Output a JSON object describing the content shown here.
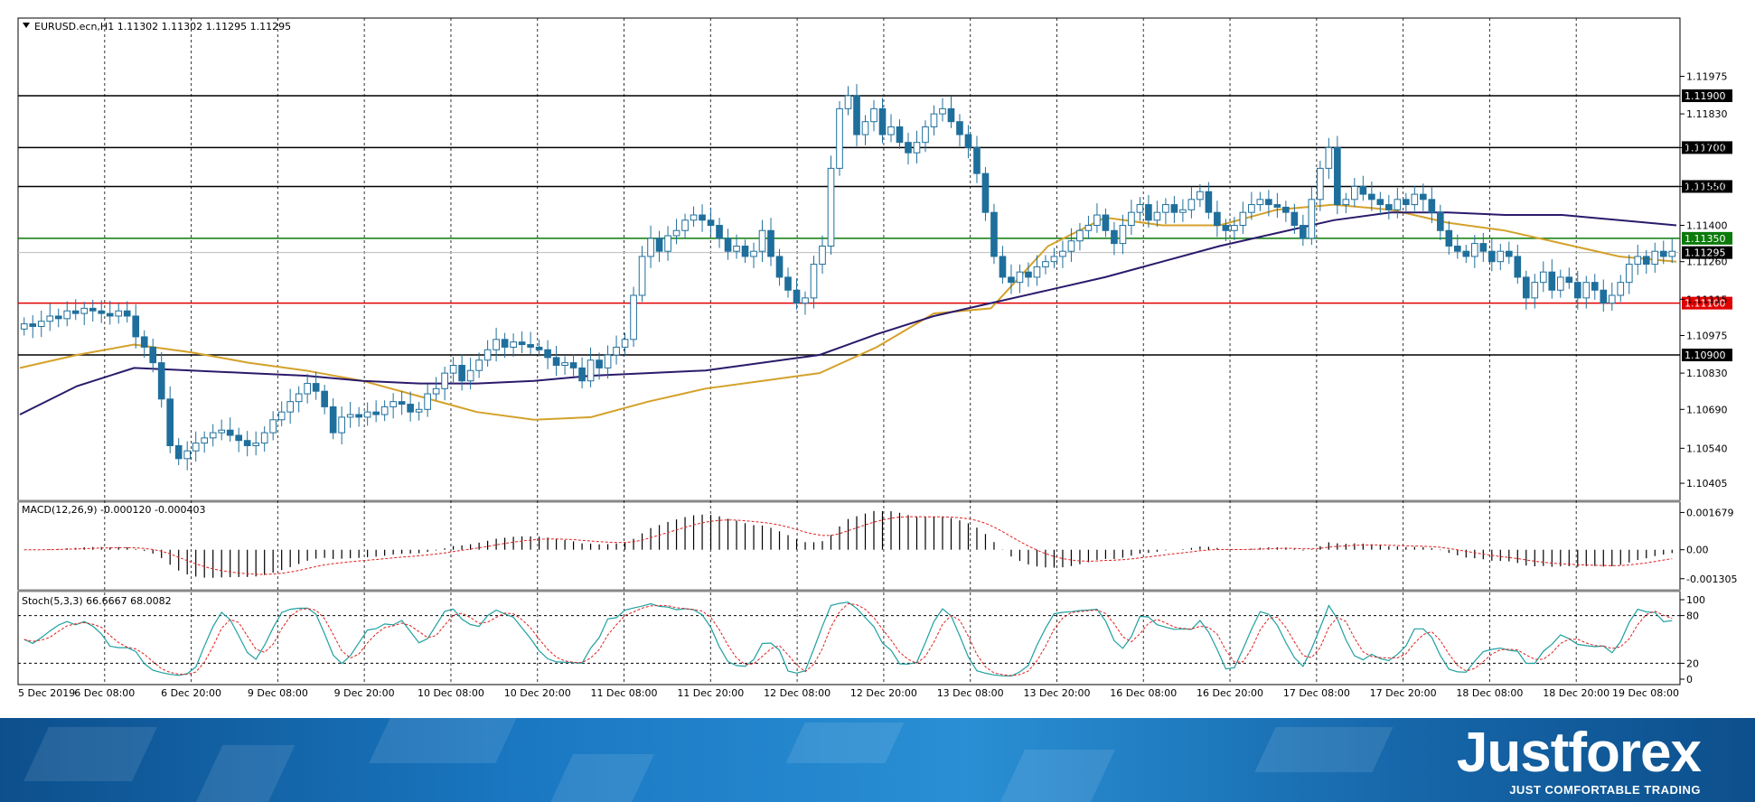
{
  "chart_data": {
    "type": "candlestick",
    "symbol_header": "EURUSD.ecn,H1  1.11302 1.11302 1.11295 1.11295",
    "y_ticks": [
      "1.11975",
      "1.11830",
      "1.11700",
      "1.11550",
      "1.11400",
      "1.11260",
      "1.11115",
      "1.10975",
      "1.10830",
      "1.10690",
      "1.10540",
      "1.10405"
    ],
    "ylim": [
      1.1036,
      1.1213
    ],
    "levels": [
      {
        "label": "1.11900",
        "value": 1.119,
        "color": "#000000",
        "tag_bg": "#000000"
      },
      {
        "label": "1.11700",
        "value": 1.117,
        "color": "#000000",
        "tag_bg": "#000000"
      },
      {
        "label": "1.11550",
        "value": 1.1155,
        "color": "#000000",
        "tag_bg": "#000000"
      },
      {
        "label": "1.11350",
        "value": 1.1135,
        "color": "#0a7a0a",
        "tag_bg": "#0a7a0a"
      },
      {
        "label": "1.11100",
        "value": 1.111,
        "color": "#e00000",
        "tag_bg": "#e00000"
      },
      {
        "label": "1.10900",
        "value": 1.109,
        "color": "#000000",
        "tag_bg": "#000000"
      }
    ],
    "current_price": {
      "label": "1.11295",
      "value": 1.11295
    },
    "x_labels": [
      "5 Dec 2019",
      "6 Dec 08:00",
      "6 Dec 20:00",
      "9 Dec 08:00",
      "9 Dec 20:00",
      "10 Dec 08:00",
      "10 Dec 20:00",
      "11 Dec 08:00",
      "11 Dec 20:00",
      "12 Dec 08:00",
      "12 Dec 20:00",
      "13 Dec 08:00",
      "13 Dec 20:00",
      "16 Dec 08:00",
      "16 Dec 20:00",
      "17 Dec 08:00",
      "17 Dec 20:00",
      "18 Dec 08:00",
      "18 Dec 20:00",
      "19 Dec 08:00"
    ],
    "closes": [
      1.1102,
      1.1101,
      1.1103,
      1.1105,
      1.1104,
      1.1107,
      1.1106,
      1.1108,
      1.1107,
      1.1106,
      1.1105,
      1.1107,
      1.1105,
      1.1097,
      1.1093,
      1.1087,
      1.1073,
      1.1055,
      1.105,
      1.1053,
      1.1056,
      1.1058,
      1.106,
      1.1061,
      1.1059,
      1.1057,
      1.1055,
      1.1056,
      1.106,
      1.1065,
      1.1068,
      1.1072,
      1.1075,
      1.1079,
      1.1076,
      1.107,
      1.106,
      1.1066,
      1.1067,
      1.1066,
      1.1068,
      1.1067,
      1.107,
      1.1072,
      1.1071,
      1.1068,
      1.1069,
      1.1075,
      1.1077,
      1.1083,
      1.1086,
      1.108,
      1.1084,
      1.1088,
      1.1092,
      1.1096,
      1.1093,
      1.1095,
      1.1094,
      1.1093,
      1.1092,
      1.1089,
      1.1086,
      1.1087,
      1.1085,
      1.108,
      1.1088,
      1.1085,
      1.109,
      1.1093,
      1.1096,
      1.1113,
      1.1128,
      1.1135,
      1.113,
      1.1136,
      1.1138,
      1.1142,
      1.1144,
      1.1142,
      1.114,
      1.1135,
      1.113,
      1.1132,
      1.1128,
      1.113,
      1.1138,
      1.1128,
      1.112,
      1.1115,
      1.111,
      1.1112,
      1.1125,
      1.1132,
      1.1162,
      1.1185,
      1.119,
      1.1175,
      1.118,
      1.1185,
      1.1175,
      1.1178,
      1.1172,
      1.1168,
      1.1172,
      1.1178,
      1.1183,
      1.1185,
      1.118,
      1.1175,
      1.117,
      1.116,
      1.1145,
      1.1128,
      1.112,
      1.1118,
      1.1122,
      1.112,
      1.1124,
      1.1126,
      1.1128,
      1.113,
      1.1134,
      1.1138,
      1.114,
      1.1144,
      1.1138,
      1.1133,
      1.114,
      1.1145,
      1.1148,
      1.1142,
      1.1145,
      1.1148,
      1.1145,
      1.1146,
      1.115,
      1.1153,
      1.1145,
      1.114,
      1.1138,
      1.114,
      1.1145,
      1.1148,
      1.115,
      1.1148,
      1.1147,
      1.1145,
      1.114,
      1.1135,
      1.115,
      1.1162,
      1.117,
      1.1148,
      1.115,
      1.1155,
      1.1152,
      1.115,
      1.1148,
      1.1146,
      1.115,
      1.1148,
      1.1152,
      1.115,
      1.1145,
      1.1138,
      1.1132,
      1.113,
      1.1128,
      1.1133,
      1.113,
      1.1126,
      1.113,
      1.1128,
      1.112,
      1.1112,
      1.1118,
      1.1122,
      1.1115,
      1.112,
      1.1118,
      1.1112,
      1.1118,
      1.1115,
      1.111,
      1.1113,
      1.1118,
      1.1125,
      1.1128,
      1.1125,
      1.113,
      1.1128,
      1.113
    ],
    "ma_fast": [
      1.1085,
      1.109,
      1.1094,
      1.1091,
      1.1087,
      1.1084,
      1.108,
      1.1074,
      1.1068,
      1.1065,
      1.1066,
      1.1072,
      1.1077,
      1.108,
      1.1083,
      1.1093,
      1.1106,
      1.1108,
      1.1132,
      1.1143,
      1.114,
      1.114,
      1.1146,
      1.1148,
      1.1146,
      1.1141,
      1.1138,
      1.1133,
      1.1128,
      1.1126
    ],
    "ma_slow": [
      1.1067,
      1.1078,
      1.1085,
      1.1084,
      1.1083,
      1.1082,
      1.108,
      1.1079,
      1.1079,
      1.108,
      1.1082,
      1.1083,
      1.1084,
      1.1087,
      1.109,
      1.1098,
      1.1105,
      1.111,
      1.1115,
      1.112,
      1.1126,
      1.1132,
      1.1137,
      1.1142,
      1.1145,
      1.1145,
      1.1144,
      1.1144,
      1.1142,
      1.114
    ],
    "macd": {
      "label": "MACD(12,26,9) -0.000120 -0.000403",
      "y_ticks": [
        "0.001679",
        "0.00",
        "-0.001305"
      ],
      "ylim": [
        -0.0016,
        0.0019
      ]
    },
    "stoch": {
      "label": "Stoch(5,3,3) 66.6667 68.0082",
      "y_ticks": [
        "100",
        "80",
        "20",
        "0"
      ],
      "levels": [
        80,
        20
      ]
    }
  },
  "brand": {
    "name": "Justforex",
    "tagline": "JUST COMFORTABLE TRADING"
  }
}
